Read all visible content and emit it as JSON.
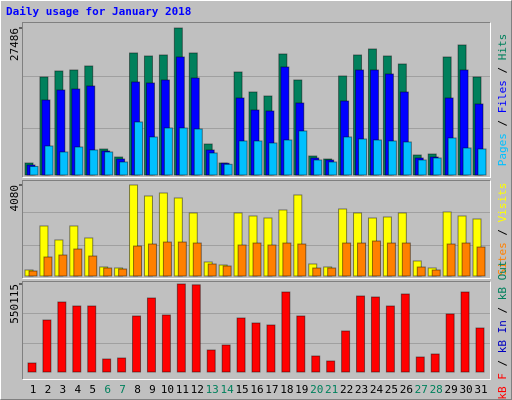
{
  "title": "Daily usage for January 2018",
  "chart_data": [
    {
      "type": "bar",
      "series": [
        {
          "name": "Hits",
          "color": "#00805c",
          "values": [
            2244,
            18326,
            19448,
            19635,
            20383,
            4862,
            3366,
            22814,
            22253,
            22440,
            27486,
            22814,
            5797,
            2244,
            19261,
            15521,
            14773,
            22627,
            17765,
            3553,
            2992,
            18513,
            22440,
            23562,
            22253,
            20757,
            3740,
            3927,
            22066,
            24310,
            18326
          ]
        },
        {
          "name": "Files",
          "color": "#0000ff",
          "values": [
            1870,
            14025,
            15895,
            16082,
            16643,
            4488,
            2992,
            17391,
            17204,
            17765,
            22066,
            18139,
            4675,
            2200,
            14399,
            12155,
            11968,
            20196,
            13464,
            3179,
            2805,
            13838,
            19635,
            19635,
            18887,
            15521,
            3179,
            3366,
            14399,
            19635,
            13277
          ]
        },
        {
          "name": "Pages",
          "color": "#00c0ff",
          "values": [
            1600,
            5423,
            4301,
            5236,
            4675,
            4300,
            2431,
            9911,
            7106,
            8789,
            8789,
            8602,
            4114,
            2000,
            6358,
            6358,
            5984,
            6545,
            8228,
            2805,
            2431,
            7106,
            6732,
            6545,
            6358,
            6171,
            2805,
            3179,
            6919,
            5049,
            4862
          ]
        }
      ],
      "ylim": [
        0,
        27486
      ],
      "yticks": [
        27486
      ]
    },
    {
      "type": "bar",
      "series": [
        {
          "name": "Visits",
          "color": "#ffff00",
          "values": [
            269,
            2242,
            1615,
            2242,
            1704,
            404,
            359,
            4080,
            3587,
            3721,
            3497,
            2825,
            628,
            493,
            2825,
            2690,
            2600,
            2959,
            3632,
            538,
            404,
            3004,
            2825,
            2600,
            2645,
            2825,
            673,
            359,
            2870,
            2690,
            2556
          ]
        },
        {
          "name": "Sites",
          "color": "#ff8000",
          "values": [
            224,
            852,
            941,
            1210,
            896,
            358,
            314,
            1344,
            1434,
            1523,
            1523,
            1478,
            538,
            448,
            1389,
            1478,
            1389,
            1478,
            1434,
            358,
            358,
            1478,
            1478,
            1568,
            1478,
            1478,
            403,
            269,
            1434,
            1478,
            1299
          ]
        }
      ],
      "ylim": [
        0,
        4080
      ],
      "yticks": [
        4080
      ]
    },
    {
      "type": "bar",
      "categories": [
        "1",
        "2",
        "3",
        "4",
        "5",
        "6",
        "7",
        "8",
        "9",
        "10",
        "11",
        "12",
        "13",
        "14",
        "15",
        "16",
        "17",
        "18",
        "19",
        "20",
        "21",
        "22",
        "23",
        "24",
        "25",
        "26",
        "27",
        "28",
        "29",
        "30",
        "31"
      ],
      "category_colors": [
        "#000000",
        "#000000",
        "#000000",
        "#000000",
        "#000000",
        "#00805c",
        "#00805c",
        "#000000",
        "#000000",
        "#000000",
        "#000000",
        "#000000",
        "#00805c",
        "#00805c",
        "#000000",
        "#000000",
        "#000000",
        "#000000",
        "#000000",
        "#00805c",
        "#00805c",
        "#000000",
        "#000000",
        "#000000",
        "#000000",
        "#000000",
        "#00805c",
        "#00805c",
        "#000000",
        "#000000",
        "#000000"
      ],
      "series": [
        {
          "name": "kB F",
          "color": "#ff0000",
          "values": [
            56259,
            325052,
            437570,
            412566,
            412566,
            81263,
            87514,
            350056,
            462574,
            356307,
            550115,
            545000,
            137522,
            168777,
            337554,
            306299,
            293797,
            500080,
            350056,
            100016,
            68761,
            256291,
            475076,
            468825,
            412566,
            487578,
            93765,
            112518,
            362558,
            500080,
            275044
          ]
        }
      ],
      "inactive_series": [
        {
          "name": "kB In",
          "color": "#0000c0"
        },
        {
          "name": "kB Out",
          "color": "#00805c"
        }
      ],
      "ylim": [
        0,
        550115
      ],
      "yticks": [
        550115
      ]
    }
  ]
}
